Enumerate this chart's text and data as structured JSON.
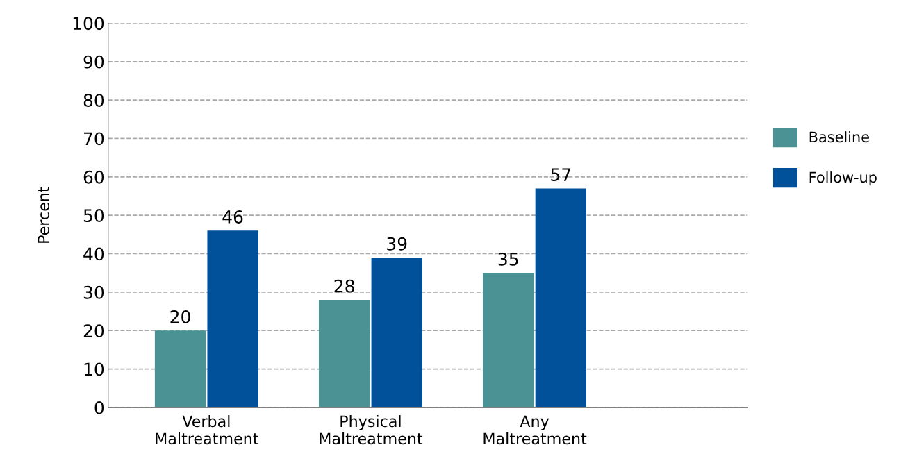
{
  "chart_data": {
    "type": "bar",
    "ylabel": "Percent",
    "categories": [
      "Verbal\nMaltreatment",
      "Physical\nMaltreatment",
      "Any\nMaltreatment"
    ],
    "series": [
      {
        "name": "Baseline",
        "color": "#4a9293",
        "values": [
          20,
          28,
          35
        ]
      },
      {
        "name": "Follow-up",
        "color": "#00519a",
        "values": [
          46,
          39,
          57
        ]
      }
    ],
    "ylim": [
      0,
      100
    ],
    "yticks": [
      0,
      10,
      20,
      30,
      40,
      50,
      60,
      70,
      80,
      90,
      100
    ],
    "grid": "y",
    "legend": "right",
    "data_labels": true
  }
}
